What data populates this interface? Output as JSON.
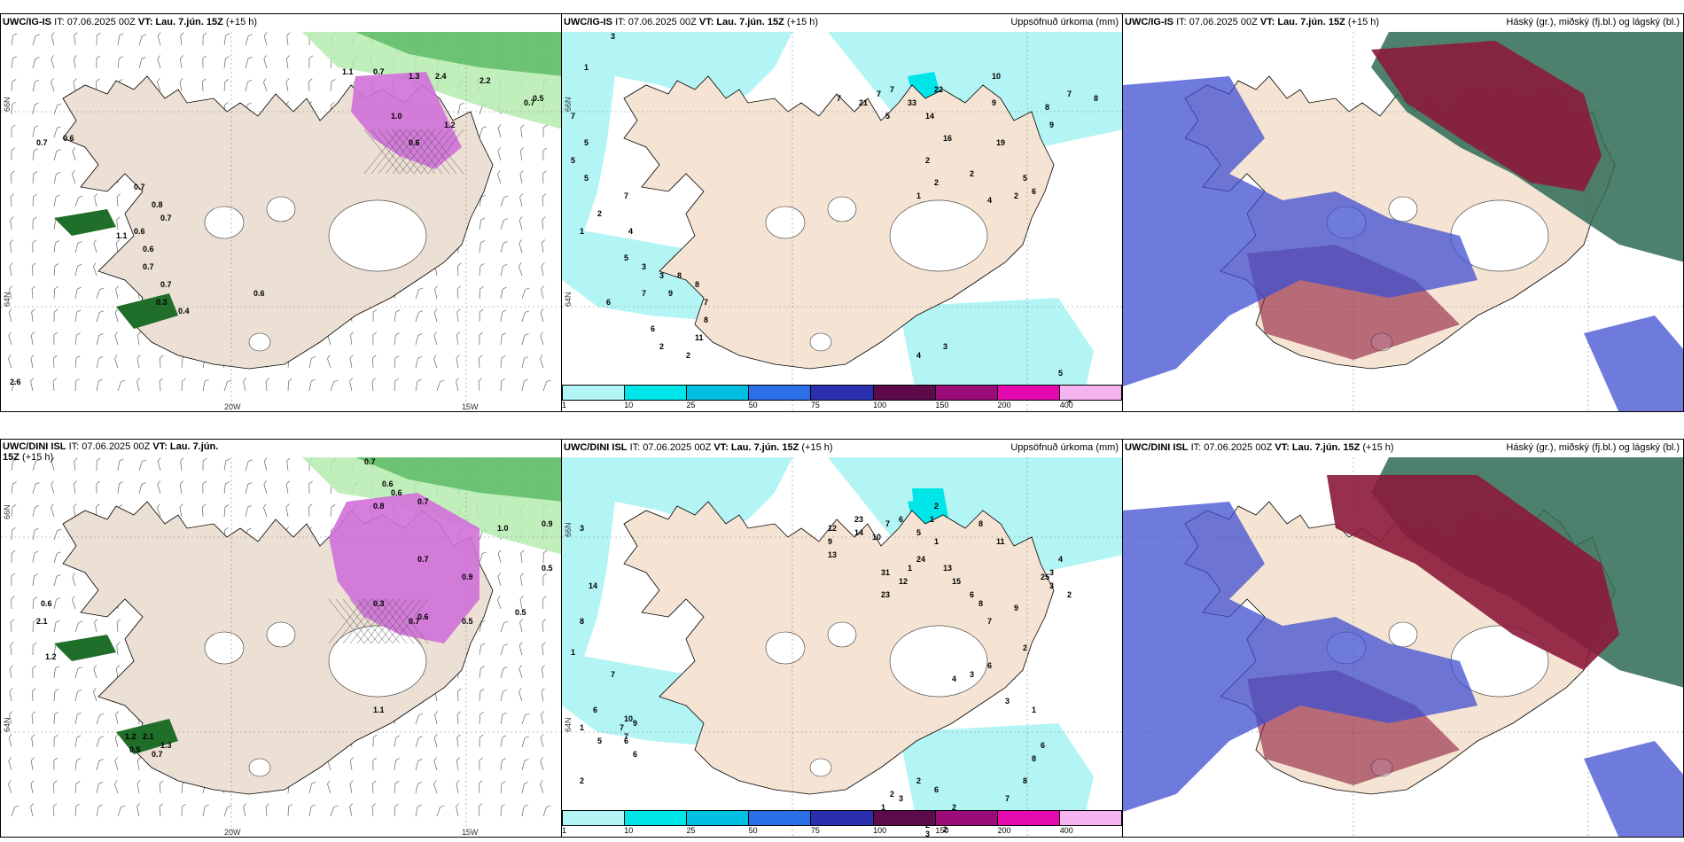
{
  "rows": [
    {
      "wind_panel": {
        "model": "UWC/IG-IS",
        "it": "IT: 07.06.2025 00Z",
        "vt_label": "VT: Lau. 7.jún. 15Z",
        "lead": "(+15 h)",
        "lon_labels": [
          "20W",
          "15W"
        ],
        "lat_labels": [
          "66N",
          "64N"
        ],
        "values": [
          "0.7",
          "0.6",
          "0.7",
          "0.8",
          "0.7",
          "0.6",
          "1.1",
          "0.6",
          "0.7",
          "0.7",
          "0.3",
          "0.4",
          "0.6",
          "1.1",
          "0.7",
          "1.3",
          "2.4",
          "2.2",
          "0.7",
          "0.5",
          "1.2",
          "1.0",
          "0.6",
          "2.6"
        ]
      },
      "precip_panel": {
        "model": "UWC/IG-IS",
        "it": "IT: 07.06.2025 00Z",
        "vt_label": "VT: Lau. 7.jún. 15Z",
        "lead": "(+15 h)",
        "title": "Uppsöfnuð úrkoma (mm)",
        "lat_labels": [
          "66N",
          "64N"
        ],
        "values": [
          "3",
          "1",
          "7",
          "5",
          "5",
          "5",
          "7",
          "2",
          "1",
          "4",
          "5",
          "3",
          "3",
          "7",
          "6",
          "9",
          "8",
          "8",
          "7",
          "8",
          "6",
          "11",
          "2",
          "2",
          "7",
          "21",
          "7",
          "7",
          "5",
          "33",
          "22",
          "14",
          "16",
          "19",
          "10",
          "9",
          "8",
          "9",
          "7",
          "8",
          "2",
          "2",
          "1",
          "2",
          "4",
          "5",
          "6",
          "2",
          "3",
          "4",
          "5",
          "1",
          "1"
        ]
      },
      "cloud_panel": {
        "model": "UWC/IG-IS",
        "it": "IT: 07.06.2025 00Z",
        "vt_label": "VT: Lau. 7.jún. 15Z",
        "lead": "(+15 h)",
        "title": "Háský (gr.), miðský (fj.bl.) og lágský (bl.)"
      }
    },
    {
      "wind_panel": {
        "model": "UWC/DINI ISL",
        "it": "IT: 07.06.2025 00Z",
        "vt_label": "VT: Lau. 7.jún. 15Z",
        "lead": "(+15",
        "lead_cont": "h)",
        "lon_labels": [
          "20W",
          "15W"
        ],
        "lat_labels": [
          "66N",
          "64N"
        ],
        "values": [
          "0.7",
          "0.6",
          "0.6",
          "0.8",
          "0.7",
          "1.0",
          "0.9",
          "0.5",
          "0.3",
          "0.7",
          "0.6",
          "0.5",
          "0.6",
          "2.1",
          "1.2",
          "1.1",
          "1.2",
          "0.5",
          "0.7",
          "1.3",
          "2.1",
          "0.7",
          "0.9",
          "0.5"
        ]
      },
      "precip_panel": {
        "model": "UWC/DINI ISL",
        "it": "IT: 07.06.2025 00Z",
        "vt_label": "VT: Lau. 7.jún. 15Z",
        "lead": "(+15 h)",
        "title": "Uppsöfnuð úrkoma (mm)",
        "lat_labels": [
          "66N",
          "64N"
        ],
        "values": [
          "3",
          "14",
          "8",
          "1",
          "7",
          "6",
          "1",
          "7",
          "7",
          "9",
          "10",
          "6",
          "5",
          "6",
          "2",
          "12",
          "9",
          "13",
          "23",
          "14",
          "10",
          "7",
          "6",
          "5",
          "1",
          "2",
          "1",
          "1",
          "8",
          "11",
          "31",
          "12",
          "23",
          "24",
          "13",
          "15",
          "6",
          "8",
          "7",
          "9",
          "25",
          "4",
          "3",
          "3",
          "2",
          "2",
          "6",
          "3",
          "4",
          "3",
          "1",
          "6",
          "8",
          "8",
          "7",
          "2",
          "2",
          "2",
          "2",
          "6",
          "2",
          "3",
          "2",
          "1",
          "3"
        ]
      },
      "cloud_panel": {
        "model": "UWC/DINI ISL",
        "it": "IT: 07.06.2025 00Z",
        "vt_label": "VT: Lau. 7.jún. 15Z",
        "lead": "(+15 h)",
        "title": "Háský (gr.), miðský (fj.bl.) og lágský (bl.)"
      }
    }
  ],
  "colorbar": {
    "ticks": [
      "1",
      "10",
      "25",
      "50",
      "75",
      "100",
      "150",
      "200",
      "400"
    ],
    "colors": [
      "#b3f5f5",
      "#00e5e8",
      "#00bfe0",
      "#2a6ee8",
      "#2a2fb0",
      "#5c0a4a",
      "#9a0a78",
      "#e40ab0",
      "#f5b3f0"
    ]
  },
  "colors": {
    "land": "#f5e4d3",
    "land_wind": "#ecdfd3",
    "precip_light": "#b3f5f5",
    "precip_mid": "#00e5e8",
    "wind_green_light": "#b6ecb0",
    "wind_green": "#56b860",
    "wind_green_dark": "#1f6e2a",
    "magenta": "#d070d8",
    "cloud_high": "#2e6b55",
    "cloud_mid": "#8c1a3a",
    "cloud_low": "#3f4fd0"
  }
}
